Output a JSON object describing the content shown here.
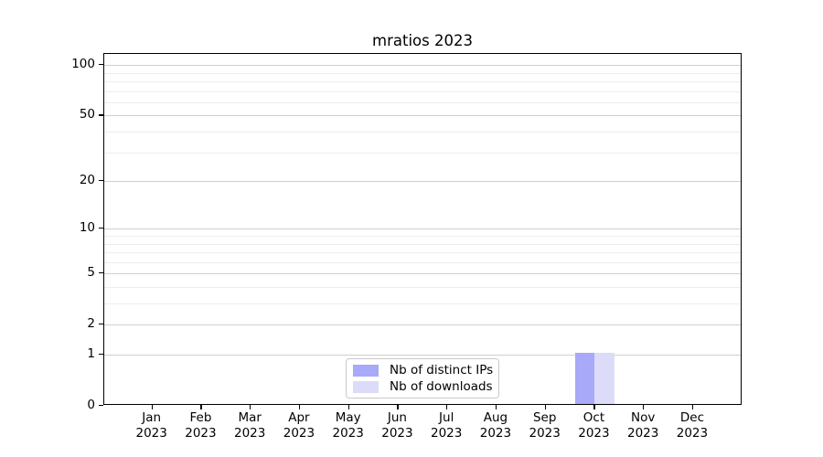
{
  "chart_data": {
    "type": "bar",
    "title": "mratios 2023",
    "categories": [
      "Jan 2023",
      "Feb 2023",
      "Mar 2023",
      "Apr 2023",
      "May 2023",
      "Jun 2023",
      "Jul 2023",
      "Aug 2023",
      "Sep 2023",
      "Oct 2023",
      "Nov 2023",
      "Dec 2023"
    ],
    "series": [
      {
        "name": "Nb of distinct IPs",
        "color": "#a9a9f9",
        "values": [
          0,
          0,
          0,
          0,
          0,
          0,
          0,
          0,
          0,
          1,
          0,
          0
        ]
      },
      {
        "name": "Nb of downloads",
        "color": "#dcdcf9",
        "values": [
          0,
          0,
          0,
          0,
          0,
          0,
          0,
          0,
          0,
          1,
          0,
          0
        ]
      }
    ],
    "xlabel": "",
    "ylabel": "",
    "yscale": "log1p",
    "y_ticks": [
      0,
      1,
      2,
      5,
      10,
      20,
      50,
      100
    ],
    "y_minor_ticks": [
      3,
      4,
      6,
      7,
      8,
      9,
      30,
      40,
      60,
      70,
      80,
      90
    ],
    "ylim": [
      0,
      115
    ],
    "grid": "both",
    "legend_position": "lower center",
    "colors": {
      "grid_major": "#cfcfcf",
      "grid_minor": "#ededed",
      "spine": "#000000",
      "legend_border": "#c9c9c9",
      "text": "#000000"
    }
  }
}
